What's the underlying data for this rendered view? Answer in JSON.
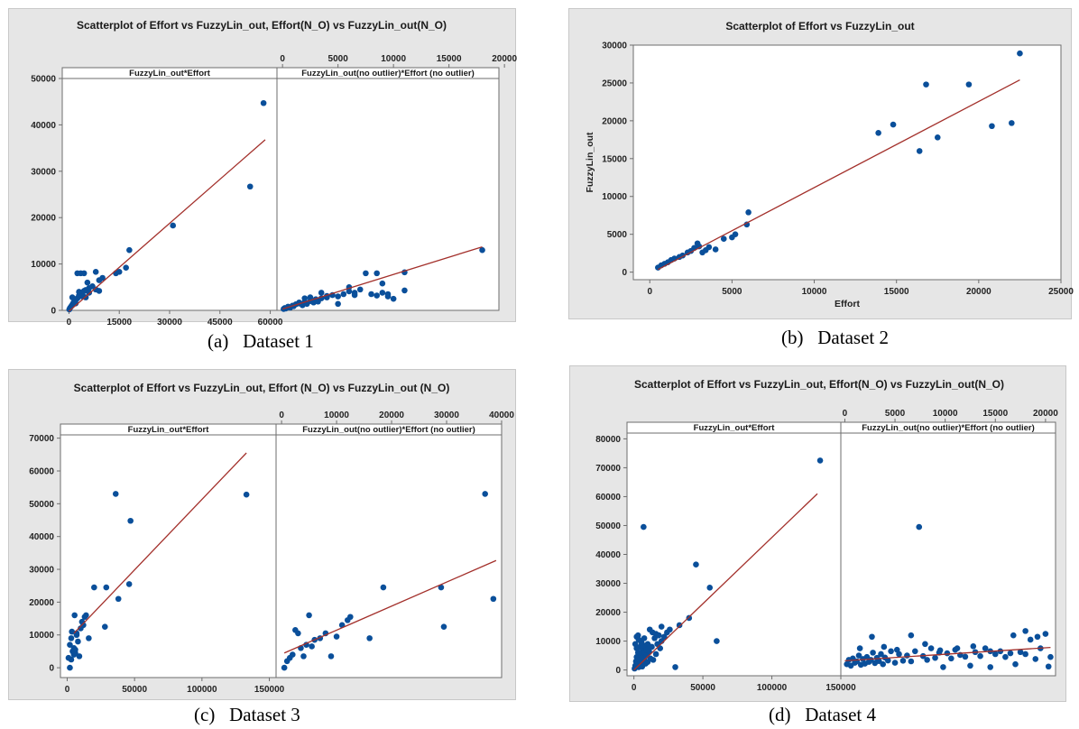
{
  "colors": {
    "point": "#0a4f9a",
    "fit_line": "#a3302b",
    "panel_bg": "#e6e6e6",
    "plot_bg": "#ffffff",
    "axis": "#6e6e6e"
  },
  "captions": {
    "a": {
      "label": "(a)",
      "text": "Dataset 1"
    },
    "b": {
      "label": "(b)",
      "text": "Dataset 2"
    },
    "c": {
      "label": "(c)",
      "text": "Dataset 3"
    },
    "d": {
      "label": "(d)",
      "text": "Dataset 4"
    }
  },
  "chart_data": [
    {
      "type": "scatter",
      "title": "Scatterplot of Effort vs FuzzyLin_out, Effort(N_O) vs FuzzyLin_out(N_O)",
      "ylim": [
        0,
        50000
      ],
      "yticks": [
        "0",
        "10000",
        "20000",
        "30000",
        "40000",
        "50000"
      ],
      "subplots": [
        {
          "strip": "FuzzyLin_out*Effort",
          "xlim": [
            -2000,
            62000
          ],
          "xticks": [
            "0",
            "15000",
            "30000",
            "45000",
            "60000"
          ],
          "xtick_values": [
            0,
            15000,
            30000,
            45000,
            60000
          ],
          "xaxis_side": "bottom",
          "x": [
            100,
            300,
            600,
            900,
            1200,
            1500,
            2000,
            2500,
            3000,
            3500,
            4000,
            4500,
            5000,
            6000,
            7000,
            8000,
            9000,
            10000,
            1000,
            2000,
            3000,
            4000,
            5000,
            6000,
            3000,
            4000,
            2500,
            3500,
            4500,
            5500,
            8000,
            9000,
            14000,
            15000,
            17000,
            18000,
            31000,
            54000,
            58000
          ],
          "y": [
            200,
            500,
            800,
            1100,
            1500,
            1800,
            2200,
            2600,
            3000,
            3400,
            3800,
            4200,
            4400,
            4800,
            5200,
            4500,
            6500,
            7000,
            2800,
            1500,
            3200,
            3500,
            2800,
            3800,
            4000,
            3000,
            8000,
            8000,
            8000,
            6000,
            8300,
            4200,
            8000,
            8300,
            9200,
            13000,
            18300,
            26700,
            44700
          ],
          "fit": {
            "x": [
              0,
              58500
            ],
            "y": [
              -200,
              36800
            ]
          }
        },
        {
          "strip": "FuzzyLin_out(no outlier)*Effort (no outlier)",
          "xlim": [
            -500,
            19500
          ],
          "xticks": [
            "0",
            "5000",
            "10000",
            "15000",
            "20000"
          ],
          "xtick_values": [
            0,
            5000,
            10000,
            15000,
            20000
          ],
          "xaxis_side": "top",
          "x": [
            100,
            200,
            300,
            500,
            700,
            900,
            1000,
            1200,
            1500,
            1800,
            2000,
            2200,
            2500,
            2800,
            3000,
            3200,
            3500,
            4000,
            4500,
            5000,
            5500,
            6000,
            6500,
            7000,
            7500,
            8000,
            8500,
            9000,
            9500,
            10000,
            11000,
            2000,
            3000,
            4000,
            5000,
            1500,
            2500,
            3500,
            6000,
            6500,
            8500,
            9000,
            9500,
            11000,
            18000
          ],
          "y": [
            300,
            500,
            400,
            800,
            600,
            1000,
            900,
            1300,
            1500,
            1100,
            1800,
            1400,
            2000,
            1700,
            2400,
            1900,
            2600,
            2800,
            3300,
            3000,
            3500,
            4100,
            3800,
            4500,
            8000,
            3500,
            8000,
            5800,
            3000,
            2500,
            8200,
            2600,
            2200,
            3100,
            1400,
            1700,
            2800,
            3800,
            5000,
            3300,
            3200,
            3800,
            3500,
            4300,
            13000
          ],
          "fit": {
            "x": [
              0,
              18000
            ],
            "y": [
              300,
              13700
            ]
          }
        }
      ]
    },
    {
      "type": "scatter",
      "title": "Scatterplot of Effort vs  FuzzyLin_out",
      "xlabel": "Effort",
      "ylabel": "FuzzyLin_out",
      "xlim": [
        -1000,
        25000
      ],
      "ylim": [
        -1000,
        30000
      ],
      "xticks": [
        "0",
        "5000",
        "10000",
        "15000",
        "20000",
        "25000"
      ],
      "yticks": [
        "0",
        "5000",
        "10000",
        "15000",
        "20000",
        "25000",
        "30000"
      ],
      "x": [
        500,
        700,
        900,
        1100,
        1300,
        1500,
        1800,
        2000,
        2300,
        2500,
        2700,
        2900,
        3000,
        3200,
        3400,
        3600,
        4000,
        4500,
        5000,
        5200,
        5900,
        6000,
        13900,
        14800,
        16400,
        16800,
        17500,
        19400,
        20800,
        22000,
        22500
      ],
      "y": [
        600,
        900,
        1100,
        1300,
        1600,
        1800,
        2000,
        2200,
        2600,
        2800,
        3200,
        3800,
        3400,
        2600,
        2900,
        3300,
        3000,
        4400,
        4600,
        5000,
        6300,
        7900,
        18400,
        19500,
        16000,
        24800,
        17800,
        24800,
        19300,
        19700,
        28900
      ],
      "fit": {
        "x": [
          500,
          22500
        ],
        "y": [
          350,
          25400
        ]
      }
    },
    {
      "type": "scatter",
      "title": "Scatterplot of Effort vs FuzzyLin_out, Effort (N_O) vs FuzzyLin_out (N_O)",
      "ylim": [
        -3000,
        71000
      ],
      "yticks": [
        "0",
        "10000",
        "20000",
        "30000",
        "40000",
        "50000",
        "60000",
        "70000"
      ],
      "subplots": [
        {
          "strip": "FuzzyLin_out*Effort",
          "xlim": [
            -5000,
            155000
          ],
          "xticks": [
            "0",
            "50000",
            "100000",
            "150000"
          ],
          "xtick_values": [
            0,
            50000,
            100000,
            150000
          ],
          "xaxis_side": "bottom",
          "x": [
            1000,
            2000,
            3000,
            3500,
            4000,
            5000,
            5500,
            6000,
            7000,
            8000,
            9000,
            10000,
            11000,
            12000,
            13000,
            14000,
            2000,
            3000,
            5000,
            6000,
            7000,
            16000,
            20000,
            28000,
            29000,
            36000,
            38000,
            46000,
            47000,
            133000
          ],
          "y": [
            3000,
            7000,
            9000,
            11000,
            5000,
            6000,
            16000,
            4500,
            10000,
            8000,
            3500,
            12000,
            14000,
            13000,
            15500,
            16000,
            0,
            2500,
            4000,
            5500,
            10500,
            9000,
            24500,
            12500,
            24500,
            53000,
            21000,
            25500,
            44800,
            52800
          ],
          "fit": {
            "x": [
              5000,
              133000
            ],
            "y": [
              10500,
              65500
            ]
          }
        },
        {
          "strip": "FuzzyLin_out(no outlier)*Effort (no outlier)",
          "xlim": [
            -1000,
            40000
          ],
          "xticks": [
            "0",
            "10000",
            "20000",
            "30000",
            "40000"
          ],
          "xtick_values": [
            0,
            10000,
            20000,
            30000,
            40000
          ],
          "xaxis_side": "top",
          "x": [
            500,
            1000,
            1500,
            2000,
            2500,
            3000,
            3500,
            4000,
            4500,
            5000,
            5500,
            6000,
            7000,
            8000,
            9000,
            10000,
            11000,
            12000,
            12500,
            16000,
            18500,
            29000,
            29500,
            37000,
            38500
          ],
          "y": [
            0,
            2000,
            3000,
            4000,
            11500,
            10500,
            6000,
            3500,
            7000,
            16000,
            6500,
            8500,
            9000,
            10500,
            3500,
            9500,
            13000,
            14500,
            15500,
            9000,
            24500,
            24500,
            12500,
            53000,
            21000
          ],
          "fit": {
            "x": [
              500,
              39000
            ],
            "y": [
              4500,
              32700
            ]
          }
        }
      ]
    },
    {
      "type": "scatter",
      "title": "Scatterplot of Effort vs FuzzyLin_out, Effort(N_O) vs FuzzyLin_out(N_O)",
      "ylim": [
        -2000,
        82000
      ],
      "yticks": [
        "0",
        "10000",
        "20000",
        "30000",
        "40000",
        "50000",
        "60000",
        "70000",
        "80000"
      ],
      "subplots": [
        {
          "strip": "FuzzyLin_out*Effort",
          "xlim": [
            -5000,
            150000
          ],
          "xticks": [
            "0",
            "50000",
            "100000",
            "150000"
          ],
          "xtick_values": [
            0,
            50000,
            100000,
            150000
          ],
          "xaxis_side": "bottom",
          "x": [
            500,
            1000,
            1500,
            2000,
            2500,
            3000,
            3500,
            4000,
            4500,
            5000,
            5500,
            6000,
            6500,
            7000,
            7500,
            8000,
            8500,
            9000,
            9500,
            10000,
            11000,
            12000,
            13000,
            14000,
            15000,
            16000,
            17000,
            18000,
            19000,
            20000,
            1000,
            2000,
            3000,
            4000,
            5000,
            6000,
            7000,
            8000,
            9000,
            10000,
            11000,
            12000,
            2000,
            3500,
            5500,
            7500,
            9500,
            11500,
            13500,
            16000,
            18000,
            20000,
            22000,
            24000,
            26000,
            30000,
            33000,
            7000,
            40000,
            45000,
            55000,
            60000,
            135000
          ],
          "y": [
            500,
            1500,
            3000,
            4500,
            2000,
            6000,
            1000,
            3500,
            8000,
            2500,
            5000,
            1200,
            7000,
            3000,
            4200,
            6500,
            2200,
            5200,
            7500,
            2800,
            6200,
            4000,
            8000,
            3500,
            11000,
            5500,
            9000,
            12000,
            7500,
            10000,
            9000,
            7500,
            12000,
            6000,
            10000,
            4000,
            8500,
            6000,
            5000,
            9000,
            6500,
            8000,
            11500,
            10500,
            9500,
            11000,
            7000,
            14000,
            13000,
            12500,
            12000,
            15000,
            11500,
            13000,
            14000,
            1000,
            15500,
            49500,
            18000,
            36500,
            28500,
            10000,
            72500
          ],
          "fit": {
            "x": [
              0,
              133000
            ],
            "y": [
              0,
              61000
            ]
          }
        },
        {
          "strip": "FuzzyLin_out(no outlier)*Effort (no outlier)",
          "xlim": [
            -400,
            21000
          ],
          "xticks": [
            "0",
            "5000",
            "10000",
            "15000",
            "20000"
          ],
          "xtick_values": [
            0,
            5000,
            10000,
            15000,
            20000
          ],
          "xaxis_side": "top",
          "x": [
            200,
            400,
            600,
            800,
            1000,
            1200,
            1400,
            1600,
            1800,
            2000,
            2200,
            2400,
            2600,
            2800,
            3000,
            3200,
            3400,
            3600,
            3800,
            4000,
            4300,
            4600,
            5000,
            5400,
            5800,
            6200,
            6600,
            7000,
            7400,
            7800,
            8200,
            8600,
            9000,
            9400,
            9800,
            10200,
            10600,
            11000,
            11500,
            12000,
            12500,
            13000,
            13500,
            14000,
            14500,
            15000,
            15500,
            16000,
            16500,
            17000,
            17500,
            18000,
            18500,
            19000,
            19500,
            20000,
            20500,
            1500,
            2700,
            3900,
            5200,
            6600,
            8000,
            9500,
            11200,
            12800,
            14500,
            16800,
            18000,
            19200,
            20300
          ],
          "y": [
            2000,
            3500,
            1500,
            4000,
            2500,
            3000,
            5000,
            1800,
            3800,
            2200,
            4500,
            2800,
            3500,
            6000,
            2400,
            4200,
            3100,
            5500,
            2000,
            4300,
            3300,
            6500,
            2500,
            5500,
            3200,
            5000,
            3000,
            6500,
            49500,
            4800,
            3500,
            7500,
            4200,
            6000,
            1000,
            5800,
            4000,
            7000,
            5200,
            4600,
            1500,
            6200,
            4800,
            7500,
            1000,
            5500,
            6500,
            4500,
            5800,
            2000,
            6200,
            5500,
            10500,
            3800,
            7500,
            12500,
            4500,
            7500,
            11500,
            8000,
            7000,
            12000,
            9000,
            6800,
            7500,
            8200,
            6500,
            12000,
            13500,
            11500,
            1200
          ],
          "fit": {
            "x": [
              0,
              20500
            ],
            "y": [
              3200,
              7800
            ]
          }
        }
      ]
    }
  ]
}
